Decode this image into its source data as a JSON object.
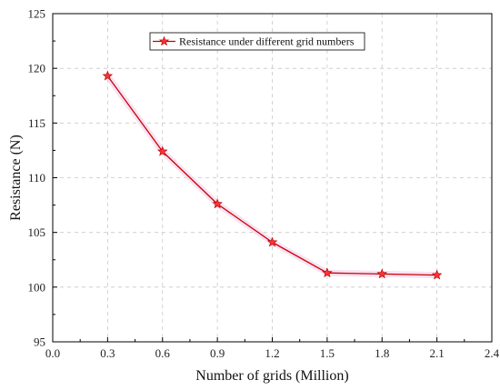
{
  "chart_data": {
    "type": "line",
    "title": "",
    "xlabel": "Number of grids (Million)",
    "ylabel": "Resistance (N)",
    "xlim": [
      0.0,
      2.4
    ],
    "ylim": [
      95,
      125
    ],
    "x_ticks": [
      "0.0",
      "0.3",
      "0.6",
      "0.9",
      "1.2",
      "1.5",
      "1.8",
      "2.1",
      "2.4"
    ],
    "y_ticks": [
      "95",
      "100",
      "105",
      "110",
      "115",
      "120",
      "125"
    ],
    "grid": true,
    "legend_position": "top-center",
    "series": [
      {
        "name": "Resistance under different grid numbers",
        "x": [
          0.3,
          0.6,
          0.9,
          1.2,
          1.5,
          1.8,
          2.1
        ],
        "y": [
          119.3,
          112.4,
          107.6,
          104.1,
          101.3,
          101.2,
          101.1
        ],
        "line_color": "#cc0000",
        "marker": "star",
        "marker_color": "#ff3333"
      }
    ]
  }
}
